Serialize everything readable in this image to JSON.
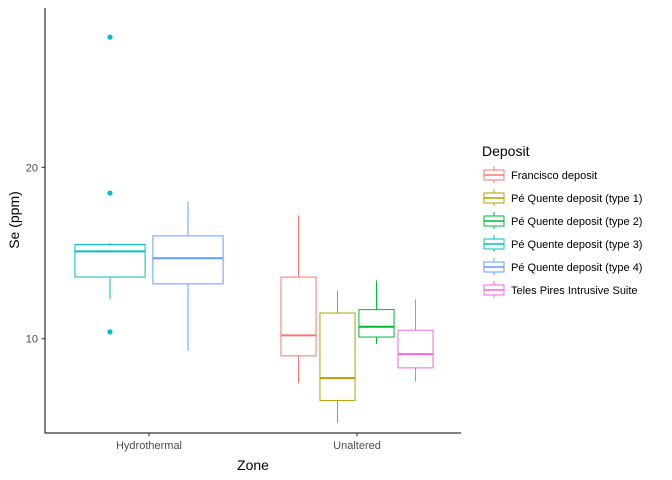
{
  "chart_data": {
    "type": "boxplot",
    "title": "",
    "xlabel": "Zone",
    "ylabel": "Se (ppm)",
    "categories": [
      "Hydrothermal",
      "Unaltered"
    ],
    "ylim": [
      4.5,
      29.3
    ],
    "yticks": [
      {
        "value": 10,
        "label": "10"
      },
      {
        "value": 20,
        "label": "20"
      }
    ],
    "grid": false,
    "legend": {
      "title": "Deposit",
      "position": "right"
    },
    "series": [
      {
        "name": "Francisco deposit",
        "color": "#F8766D",
        "boxes": [
          {
            "category": "Unaltered",
            "min": 7.4,
            "q1": 9.0,
            "median": 10.2,
            "q3": 13.6,
            "max": 17.2,
            "outliers": []
          }
        ]
      },
      {
        "name": "Pé Quente deposit (type 1)",
        "color": "#B79F00",
        "boxes": [
          {
            "category": "Unaltered",
            "min": 5.1,
            "q1": 6.4,
            "median": 7.7,
            "q3": 11.5,
            "max": 12.8,
            "outliers": []
          }
        ]
      },
      {
        "name": "Pé Quente deposit (type 2)",
        "color": "#00BA38",
        "boxes": [
          {
            "category": "Unaltered",
            "min": 9.7,
            "q1": 10.1,
            "median": 10.7,
            "q3": 11.7,
            "max": 13.4,
            "outliers": []
          }
        ]
      },
      {
        "name": "Pé Quente deposit (type 3)",
        "color": "#00BFC4",
        "boxes": [
          {
            "category": "Hydrothermal",
            "min": 12.3,
            "q1": 13.6,
            "median": 15.1,
            "q3": 15.5,
            "max": 15.6,
            "outliers": [
              10.4,
              18.5,
              27.6
            ]
          }
        ]
      },
      {
        "name": "Pé Quente deposit (type 4)",
        "color": "#619CFF",
        "boxes": [
          {
            "category": "Hydrothermal",
            "min": 9.3,
            "q1": 13.2,
            "median": 14.7,
            "q3": 16.0,
            "max": 18.0,
            "outliers": []
          }
        ]
      },
      {
        "name": "Teles Pires Intrusive Suite",
        "color": "#F564E3",
        "boxes": [
          {
            "category": "Unaltered",
            "min": 7.5,
            "q1": 8.3,
            "median": 9.1,
            "q3": 10.5,
            "max": 12.3,
            "outliers": []
          }
        ]
      }
    ]
  }
}
